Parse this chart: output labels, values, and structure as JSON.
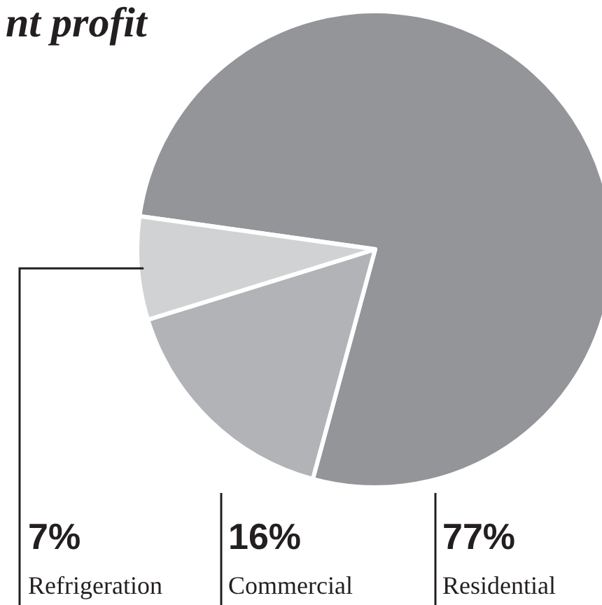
{
  "chart_data": {
    "type": "pie",
    "title": "nt profit",
    "categories": [
      "Residential",
      "Commercial",
      "Refrigeration"
    ],
    "values": [
      77,
      16,
      7
    ],
    "value_labels": [
      "77%",
      "16%",
      "7%"
    ],
    "colors": [
      "#939598",
      "#b1b3b6",
      "#d1d2d4"
    ]
  }
}
